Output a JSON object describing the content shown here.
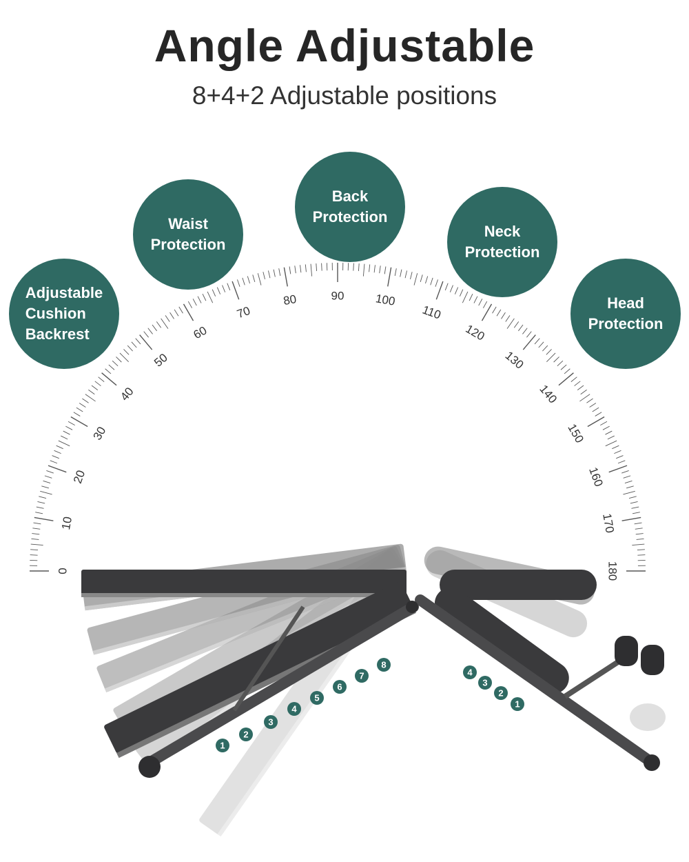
{
  "header": {
    "title": "Angle Adjustable",
    "subtitle": "8+4+2 Adjustable positions"
  },
  "features": [
    {
      "label": "Adjustable\nCushion\nBackrest"
    },
    {
      "label": "Waist\nProtection"
    },
    {
      "label": "Back\nProtection"
    },
    {
      "label": "Neck\nProtection"
    },
    {
      "label": "Head\nProtection"
    }
  ],
  "protractor": {
    "labels": [
      "0",
      "10",
      "20",
      "30",
      "40",
      "50",
      "60",
      "70",
      "80",
      "90",
      "100",
      "110",
      "120",
      "130",
      "140",
      "150",
      "160",
      "170",
      "180"
    ]
  },
  "backrest_positions": [
    "1",
    "2",
    "3",
    "4",
    "5",
    "6",
    "7",
    "8"
  ],
  "seat_positions": [
    "4",
    "3",
    "2",
    "1"
  ],
  "colors": {
    "accent": "#2f6a63",
    "bench": "#3a3a3c",
    "text": "#262626"
  }
}
